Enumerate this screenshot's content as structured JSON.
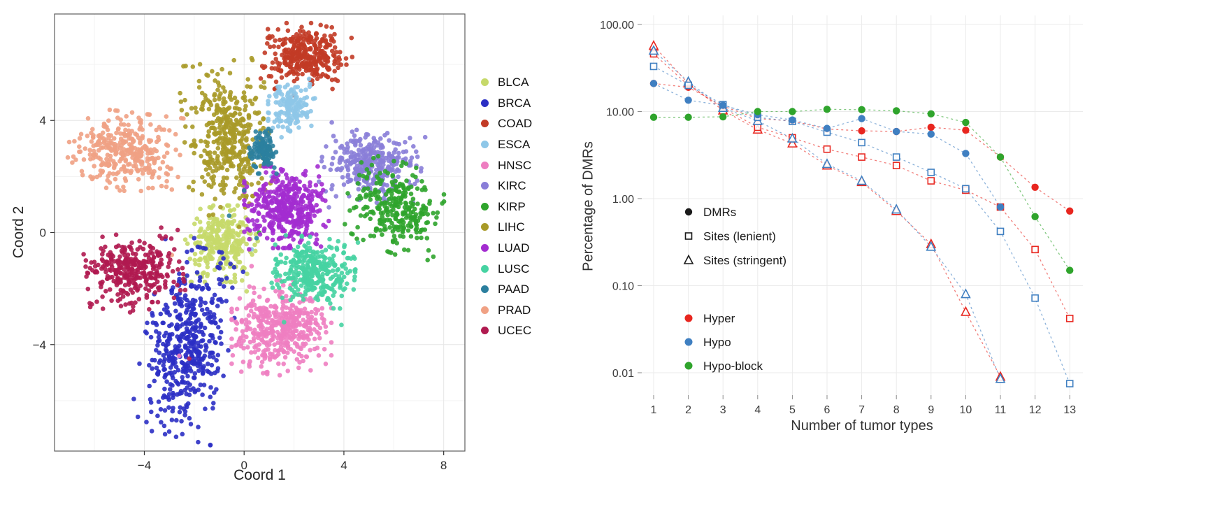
{
  "chart_data": [
    {
      "id": "tsne",
      "type": "scatter",
      "xlabel": "Coord 1",
      "ylabel": "Coord 2",
      "xlim": [
        -7.6,
        8.85
      ],
      "ylim": [
        -7.8,
        7.8
      ],
      "xticks": [
        -4,
        0,
        4,
        8
      ],
      "yticks": [
        -4,
        0,
        4
      ],
      "grid": true,
      "legend_position": "right",
      "clusters": [
        {
          "label": "BLCA",
          "color": "#c6d96a",
          "center": [
            -0.9,
            -0.4
          ],
          "spread": [
            0.62,
            0.58
          ],
          "angle": 0,
          "n": 300,
          "outliers": [
            [
              0.1,
              -2.1
            ]
          ]
        },
        {
          "label": "BRCA",
          "color": "#2b2fc4",
          "center": [
            -2.3,
            -3.9
          ],
          "spread": [
            0.72,
            1.45
          ],
          "angle": -12,
          "n": 470,
          "outliers": [
            [
              -2.0,
              -0.2
            ]
          ]
        },
        {
          "label": "COAD",
          "color": "#c23b26",
          "center": [
            2.5,
            6.3
          ],
          "spread": [
            0.78,
            0.5
          ],
          "angle": 0,
          "n": 330,
          "outliers": [
            [
              2.0,
              4.9
            ]
          ]
        },
        {
          "label": "ESCA",
          "color": "#8ec7e8",
          "center": [
            1.9,
            4.5
          ],
          "spread": [
            0.4,
            0.42
          ],
          "angle": 0,
          "n": 150,
          "outliers": [
            [
              1.1,
              2.0
            ],
            [
              0.3,
              -0.6
            ],
            [
              2.7,
              -2.4
            ],
            [
              -0.2,
              2.3
            ],
            [
              1.5,
              3.4
            ]
          ]
        },
        {
          "label": "HNSC",
          "color": "#ee7ec1",
          "center": [
            1.5,
            -3.4
          ],
          "spread": [
            0.85,
            0.72
          ],
          "angle": 0,
          "n": 430,
          "outliers": [
            [
              -2.6,
              -4.4
            ],
            [
              0.3,
              -1.2
            ]
          ]
        },
        {
          "label": "KIRC",
          "color": "#8a7ed8",
          "center": [
            5.1,
            2.4
          ],
          "spread": [
            0.85,
            0.55
          ],
          "angle": -8,
          "n": 330,
          "outliers": [
            [
              3.4,
              0.9
            ]
          ]
        },
        {
          "label": "KIRP",
          "color": "#2fa42c",
          "center": [
            6.1,
            0.9
          ],
          "spread": [
            0.85,
            0.68
          ],
          "angle": -20,
          "n": 280,
          "outliers": [
            [
              1.9,
              0.9
            ],
            [
              2.2,
              0.4
            ],
            [
              4.7,
              2.5
            ],
            [
              0.6,
              0.0
            ]
          ]
        },
        {
          "label": "LIHC",
          "color": "#a89a28",
          "center": [
            -0.7,
            3.4
          ],
          "spread": [
            0.72,
            1.15
          ],
          "angle": 6,
          "n": 420,
          "outliers": [
            [
              0.9,
              0.9
            ],
            [
              -0.2,
              0.2
            ]
          ]
        },
        {
          "label": "LUAD",
          "color": "#a32cd0",
          "center": [
            1.7,
            0.9
          ],
          "spread": [
            0.72,
            0.62
          ],
          "angle": 0,
          "n": 420,
          "outliers": [
            [
              0.2,
              -0.6
            ],
            [
              3.0,
              2.0
            ]
          ]
        },
        {
          "label": "LUSC",
          "color": "#46d3a2",
          "center": [
            2.8,
            -1.4
          ],
          "spread": [
            0.7,
            0.52
          ],
          "angle": -6,
          "n": 330,
          "outliers": [
            [
              1.6,
              -3.2
            ],
            [
              3.9,
              -3.3
            ]
          ]
        },
        {
          "label": "PAAD",
          "color": "#2b7f9e",
          "center": [
            0.8,
            2.9
          ],
          "spread": [
            0.26,
            0.34
          ],
          "angle": 0,
          "n": 110,
          "outliers": [
            [
              0.0,
              1.5
            ],
            [
              -0.6,
              0.6
            ],
            [
              1.3,
              2.1
            ],
            [
              0.5,
              -0.2
            ]
          ]
        },
        {
          "label": "PRAD",
          "color": "#f0a184",
          "center": [
            -4.8,
            2.9
          ],
          "spread": [
            0.95,
            0.6
          ],
          "angle": -6,
          "n": 330,
          "outliers": [
            [
              -2.9,
              -0.8
            ]
          ]
        },
        {
          "label": "UCEC",
          "color": "#b01a50",
          "center": [
            -4.4,
            -1.4
          ],
          "spread": [
            0.82,
            0.6
          ],
          "angle": 8,
          "n": 330,
          "outliers": [
            [
              -2.8,
              -0.6
            ],
            [
              -2.2,
              -4.5
            ]
          ]
        }
      ]
    },
    {
      "id": "dmr",
      "type": "line",
      "xlabel": "Number of tumor types",
      "ylabel": "Percentage of DMRs",
      "yscale": "log",
      "x": [
        1,
        2,
        3,
        4,
        5,
        6,
        7,
        8,
        9,
        10,
        11,
        12,
        13
      ],
      "xtick_labels": [
        "1",
        "2",
        "3",
        "4",
        "5",
        "6",
        "7",
        "8",
        "9",
        "10",
        "11",
        "12",
        "13"
      ],
      "yticks": [
        0.01,
        0.1,
        1.0,
        10.0,
        100.0
      ],
      "ytick_labels": [
        "0.01",
        "0.10",
        "1.00",
        "10.00",
        "100.00"
      ],
      "grid": true,
      "series": [
        {
          "name": "Hyper Sites (stringent)",
          "group": "Hyper",
          "shape": "Sites (stringent)",
          "marker": "triangle-open",
          "color": "#e8261f",
          "values": [
            57,
            21,
            10.3,
            6.2,
            4.3,
            2.4,
            1.55,
            0.72,
            0.3,
            0.05,
            0.009,
            null,
            null
          ]
        },
        {
          "name": "Hyper Sites (lenient)",
          "group": "Hyper",
          "shape": "Sites (lenient)",
          "marker": "square-open",
          "color": "#e8261f",
          "values": [
            46,
            20,
            11,
            6.6,
            5.0,
            3.7,
            3.0,
            2.4,
            1.6,
            1.25,
            0.8,
            0.26,
            0.042
          ]
        },
        {
          "name": "Hyper DMRs",
          "group": "Hyper",
          "shape": "DMRs",
          "marker": "circle-filled",
          "color": "#e8261f",
          "values": [
            21,
            19,
            11.5,
            8.3,
            7.8,
            6.3,
            6.0,
            5.9,
            6.6,
            6.1,
            3.0,
            1.35,
            0.72
          ]
        },
        {
          "name": "Hypo Sites (stringent)",
          "group": "Hypo",
          "shape": "Sites (stringent)",
          "marker": "triangle-open",
          "color": "#3f7fc1",
          "values": [
            50,
            22,
            11,
            7.8,
            4.9,
            2.5,
            1.6,
            0.75,
            0.28,
            0.08,
            0.0085,
            null,
            null
          ]
        },
        {
          "name": "Hypo Sites (lenient)",
          "group": "Hypo",
          "shape": "Sites (lenient)",
          "marker": "square-open",
          "color": "#3f7fc1",
          "values": [
            33,
            20,
            12,
            8.6,
            7.7,
            5.8,
            4.4,
            3.0,
            2.0,
            1.3,
            0.42,
            0.072,
            0.0075
          ]
        },
        {
          "name": "Hypo DMRs",
          "group": "Hypo",
          "shape": "DMRs",
          "marker": "circle-filled",
          "color": "#3f7fc1",
          "values": [
            21,
            13.5,
            11.8,
            9.2,
            8.0,
            6.4,
            8.3,
            5.9,
            5.5,
            3.3,
            0.8,
            null,
            null
          ]
        },
        {
          "name": "Hypo-block DMRs",
          "group": "Hypo-block",
          "shape": "DMRs",
          "marker": "circle-filled",
          "color": "#2fa42c",
          "values": [
            8.6,
            8.6,
            8.7,
            10.0,
            10.0,
            10.6,
            10.5,
            10.2,
            9.4,
            7.5,
            3.0,
            0.62,
            0.15
          ]
        }
      ],
      "shape_legend": [
        {
          "label": "DMRs",
          "marker": "circle-filled"
        },
        {
          "label": "Sites (lenient)",
          "marker": "square-open"
        },
        {
          "label": "Sites (stringent)",
          "marker": "triangle-open"
        }
      ],
      "color_legend": [
        {
          "label": "Hyper",
          "color": "#e8261f"
        },
        {
          "label": "Hypo",
          "color": "#3f7fc1"
        },
        {
          "label": "Hypo-block",
          "color": "#2fa42c"
        }
      ]
    }
  ]
}
